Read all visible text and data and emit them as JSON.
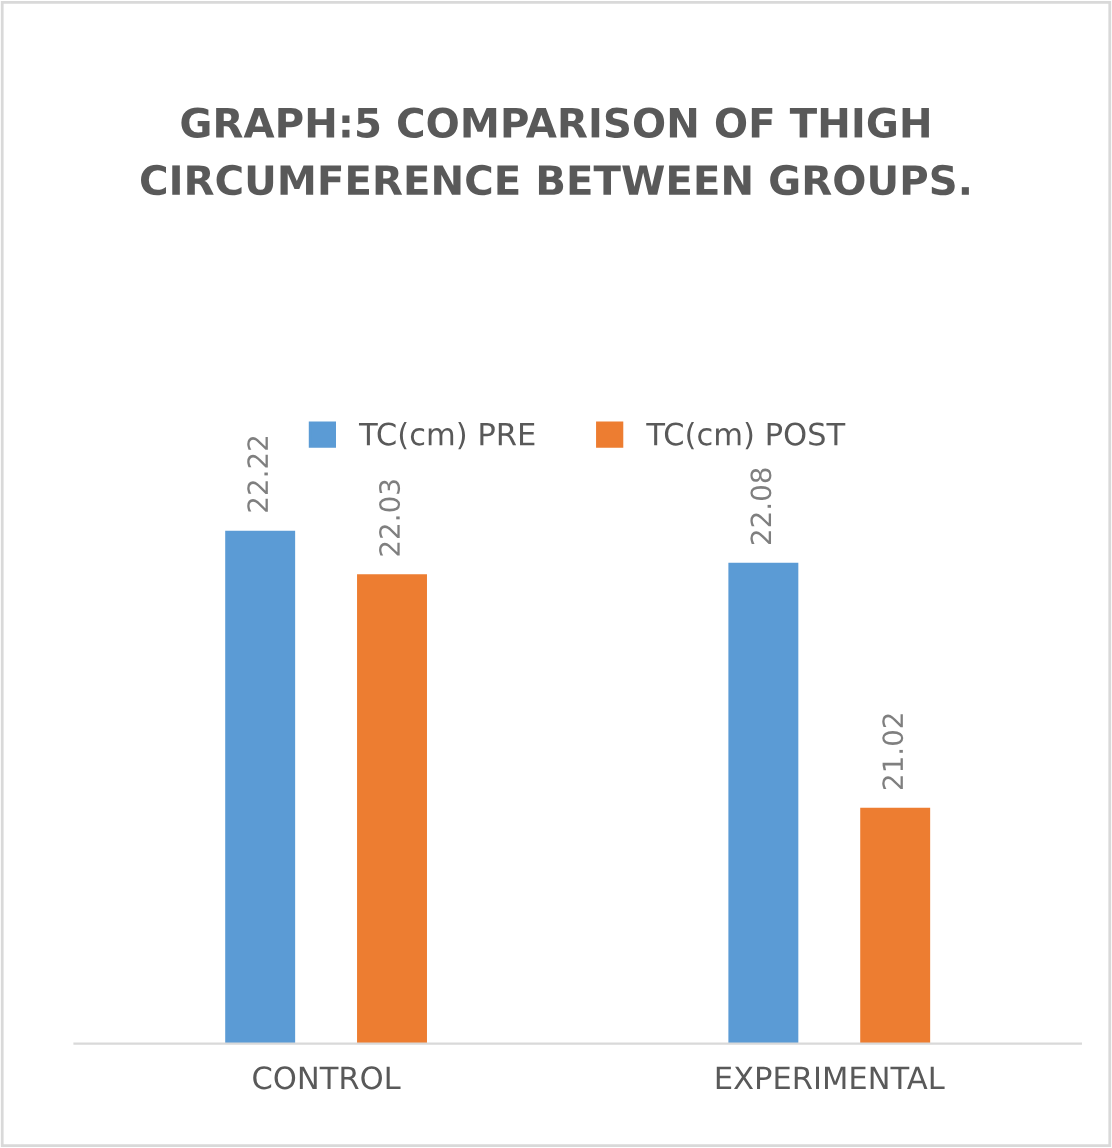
{
  "chart_data": {
    "type": "bar",
    "title": "GRAPH:5 COMPARISON OF THIGH CIRCUMFERENCE BETWEEN GROUPS.",
    "categories": [
      "CONTROL",
      "EXPERIMENTAL"
    ],
    "series": [
      {
        "name": "TC(cm) PRE",
        "color": "#5b9bd5",
        "values": [
          22.22,
          22.08
        ]
      },
      {
        "name": "TC(cm) POST",
        "color": "#ed7d31",
        "values": [
          22.03,
          21.02
        ]
      }
    ],
    "ylim": [
      20,
      22.22
    ],
    "tick_labels": "x",
    "data_labels": true,
    "legend": "top",
    "grid": false
  }
}
